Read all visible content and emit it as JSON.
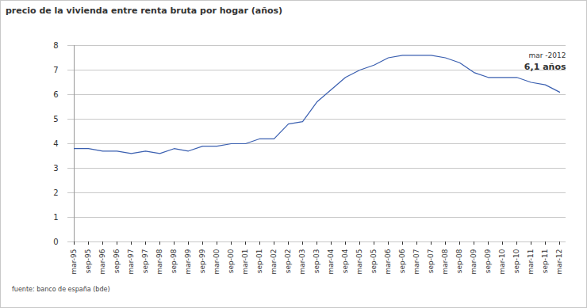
{
  "chart_data": {
    "type": "line",
    "title": "precio de la vivienda entre renta bruta por hogar (años)",
    "source": "fuente:  banco de españa (bde)",
    "annotation": [
      "mar -2012",
      "6,1 años"
    ],
    "categories": [
      "mar-95",
      "sep-95",
      "mar-96",
      "sep-96",
      "mar-97",
      "sep-97",
      "mar-98",
      "sep-98",
      "mar-99",
      "sep-99",
      "mar-00",
      "sep-00",
      "mar-01",
      "sep-01",
      "mar-02",
      "sep-02",
      "mar-03",
      "sep-03",
      "mar-04",
      "sep-04",
      "mar-05",
      "sep-05",
      "mar-06",
      "sep-06",
      "mar-07",
      "sep-07",
      "mar-08",
      "sep-08",
      "mar-09",
      "sep-09",
      "mar-10",
      "sep-10",
      "mar-11",
      "sep-11",
      "mar-12"
    ],
    "values": [
      3.8,
      3.8,
      3.7,
      3.7,
      3.6,
      3.7,
      3.6,
      3.8,
      3.7,
      3.9,
      3.9,
      4.0,
      4.0,
      4.2,
      4.2,
      4.8,
      4.9,
      5.7,
      6.2,
      6.7,
      7.0,
      7.2,
      7.5,
      7.6,
      7.6,
      7.6,
      7.5,
      7.3,
      6.9,
      6.7,
      6.7,
      6.7,
      6.5,
      6.4,
      6.1
    ],
    "color": "#3a5fb0",
    "ylim": [
      0,
      8
    ],
    "yticks": [
      0,
      1,
      2,
      3,
      4,
      5,
      6,
      7,
      8
    ],
    "grid": true
  }
}
